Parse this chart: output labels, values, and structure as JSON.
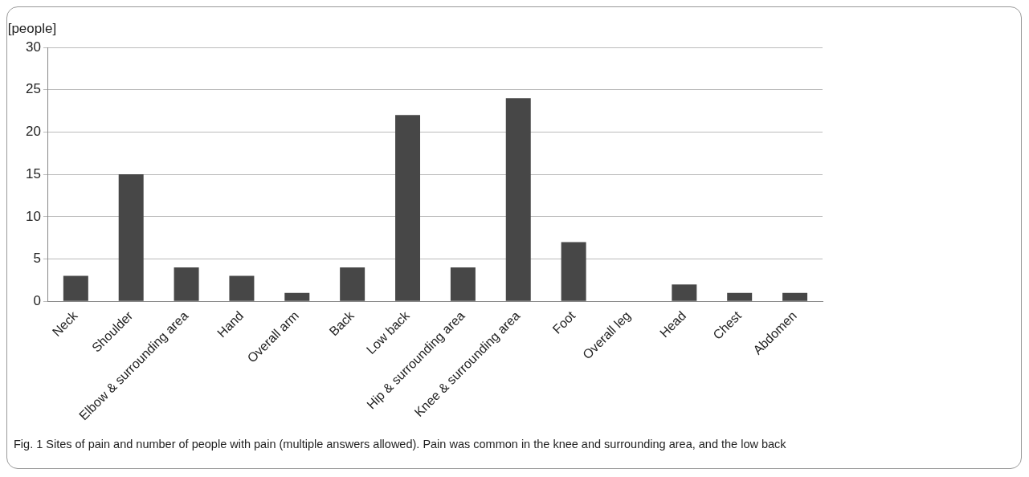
{
  "chart_data": {
    "type": "bar",
    "ylabel": "[people]",
    "categories": [
      "Neck",
      "Shoulder",
      "Elbow & surrounding area",
      "Hand",
      "Overall arm",
      "Back",
      "Low back",
      "Hip & surrounding area",
      "Knee & surrounding area",
      "Foot",
      "Overall leg",
      "Head",
      "Chest",
      "Abdomen"
    ],
    "values": [
      3,
      15,
      4,
      3,
      1,
      4,
      22,
      4,
      24,
      7,
      0,
      2,
      1,
      1
    ],
    "color": "#474747",
    "ylim": [
      0,
      30
    ],
    "yticks": [
      0,
      5,
      10,
      15,
      20,
      25,
      30
    ],
    "grid": "y",
    "legend": false,
    "annotations": [
      "Fig. 1 Sites of pain and number of people with pain (multiple answers allowed). Pain was common in the knee and surrounding area, and the low back"
    ]
  }
}
